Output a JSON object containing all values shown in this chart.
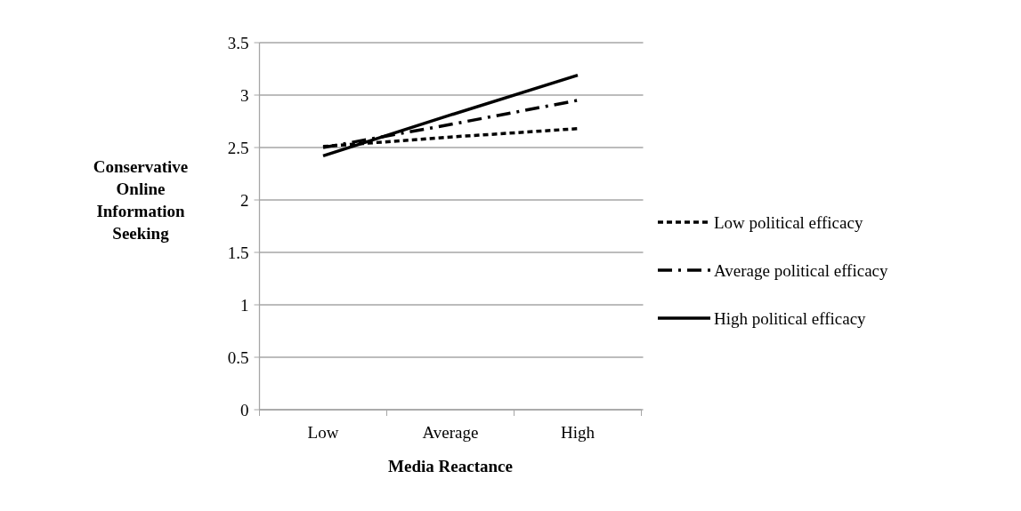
{
  "chart_data": {
    "type": "line",
    "xlabel": "Media Reactance",
    "ylabel": "Conservative Online Information Seeking",
    "categories": [
      "Low",
      "Average",
      "High"
    ],
    "series": [
      {
        "name": "Low political efficacy",
        "color": "#000000",
        "line_style": "dotted",
        "values": [
          2.51,
          2.6,
          2.68
        ]
      },
      {
        "name": "Average political efficacy",
        "color": "#000000",
        "line_style": "dashed",
        "values": [
          2.5,
          2.72,
          2.95
        ]
      },
      {
        "name": "High political efficacy",
        "color": "#000000",
        "line_style": "solid",
        "values": [
          2.42,
          2.81,
          3.19
        ]
      }
    ],
    "ylim": [
      0,
      3.5
    ],
    "yticks": [
      0,
      0.5,
      1,
      1.5,
      2,
      2.5,
      3,
      3.5
    ],
    "grid": "y",
    "legend": "right",
    "marker": "none"
  }
}
